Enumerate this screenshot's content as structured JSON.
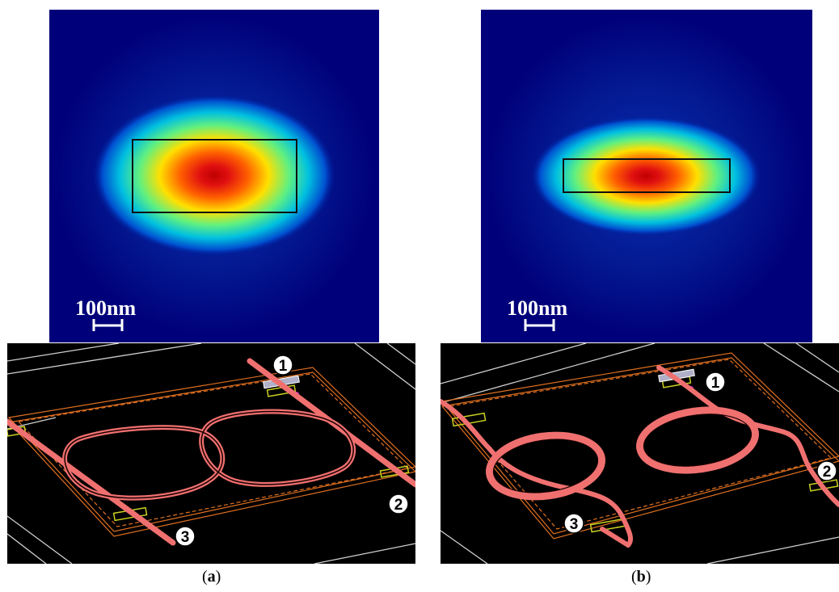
{
  "figure": {
    "panels": [
      {
        "id": "a",
        "caption_open": "(",
        "caption_letter": "a",
        "caption_close": ")",
        "scale_bar_label": "100nm",
        "ports": [
          "1",
          "2",
          "3"
        ]
      },
      {
        "id": "b",
        "caption_open": "(",
        "caption_letter": "b",
        "caption_close": ")",
        "scale_bar_label": "100nm",
        "ports": [
          "1",
          "2",
          "3"
        ]
      }
    ],
    "colors": {
      "field_background": "#00007a",
      "waveguide": "#f07070",
      "outline": "#e07020",
      "pad": "#c8d020",
      "grid_line": "#d0d0d0"
    }
  }
}
